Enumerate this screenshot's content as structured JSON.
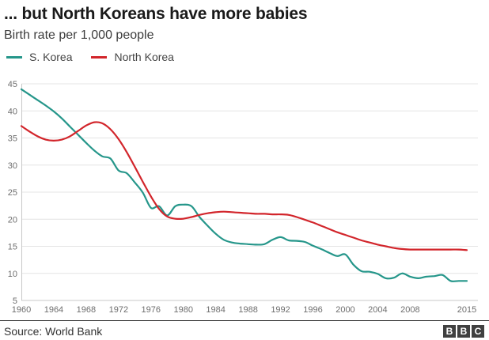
{
  "header": {
    "title": "... but North Koreans have more babies",
    "subtitle": "Birth rate per 1,000 people"
  },
  "legend": [
    {
      "label": "S. Korea",
      "color": "#25968a"
    },
    {
      "label": "North Korea",
      "color": "#d2252b"
    }
  ],
  "footer": {
    "source": "Source: World Bank",
    "logo_letters": [
      "B",
      "B",
      "C"
    ]
  },
  "colors": {
    "grid": "#e4e4e4",
    "axis": "#c8c8c8",
    "tick_text": "#6e6e6e"
  },
  "chart_data": {
    "type": "line",
    "title": "... but North Koreans have more babies",
    "subtitle": "Birth rate per 1,000 people",
    "xlabel": "",
    "ylabel": "Birth rate per 1,000 people",
    "ylim": [
      5,
      45
    ],
    "y_ticks": [
      5,
      10,
      15,
      20,
      25,
      30,
      35,
      40,
      45
    ],
    "x_ticks": [
      1960,
      1964,
      1968,
      1972,
      1976,
      1980,
      1984,
      1988,
      1992,
      1996,
      2000,
      2004,
      2008,
      2015
    ],
    "x_range": [
      1960,
      2015
    ],
    "grid": true,
    "legend_position": "top-left",
    "years": [
      1960,
      1961,
      1962,
      1963,
      1964,
      1965,
      1966,
      1967,
      1968,
      1969,
      1970,
      1971,
      1972,
      1973,
      1974,
      1975,
      1976,
      1977,
      1978,
      1979,
      1980,
      1981,
      1982,
      1983,
      1984,
      1985,
      1986,
      1987,
      1988,
      1989,
      1990,
      1991,
      1992,
      1993,
      1994,
      1995,
      1996,
      1997,
      1998,
      1999,
      2000,
      2001,
      2002,
      2003,
      2004,
      2005,
      2006,
      2007,
      2008,
      2009,
      2010,
      2011,
      2012,
      2013,
      2014,
      2015
    ],
    "series": [
      {
        "name": "S. Korea",
        "color": "#25968a",
        "values": [
          44.0,
          43.0,
          42.0,
          41.0,
          39.9,
          38.6,
          37.1,
          35.6,
          34.1,
          32.7,
          31.6,
          31.2,
          29.0,
          28.5,
          26.8,
          24.9,
          22.1,
          22.4,
          20.7,
          22.4,
          22.7,
          22.4,
          20.4,
          18.8,
          17.3,
          16.2,
          15.7,
          15.5,
          15.4,
          15.3,
          15.4,
          16.2,
          16.7,
          16.1,
          16.0,
          15.8,
          15.1,
          14.5,
          13.8,
          13.2,
          13.5,
          11.6,
          10.4,
          10.3,
          9.9,
          9.1,
          9.2,
          10.0,
          9.4,
          9.1,
          9.4,
          9.5,
          9.7,
          8.6,
          8.6,
          8.6
        ]
      },
      {
        "name": "North Korea",
        "color": "#d2252b",
        "values": [
          37.2,
          36.2,
          35.3,
          34.7,
          34.5,
          34.7,
          35.3,
          36.3,
          37.3,
          37.9,
          37.7,
          36.6,
          34.8,
          32.4,
          29.7,
          26.9,
          24.2,
          21.9,
          20.5,
          20.1,
          20.1,
          20.4,
          20.8,
          21.1,
          21.3,
          21.4,
          21.3,
          21.2,
          21.1,
          21.0,
          21.0,
          20.9,
          20.9,
          20.8,
          20.4,
          19.9,
          19.4,
          18.8,
          18.2,
          17.6,
          17.1,
          16.6,
          16.1,
          15.7,
          15.3,
          15.0,
          14.7,
          14.5,
          14.4,
          14.4,
          14.4,
          14.4,
          14.4,
          14.4,
          14.4,
          14.3
        ]
      }
    ]
  }
}
